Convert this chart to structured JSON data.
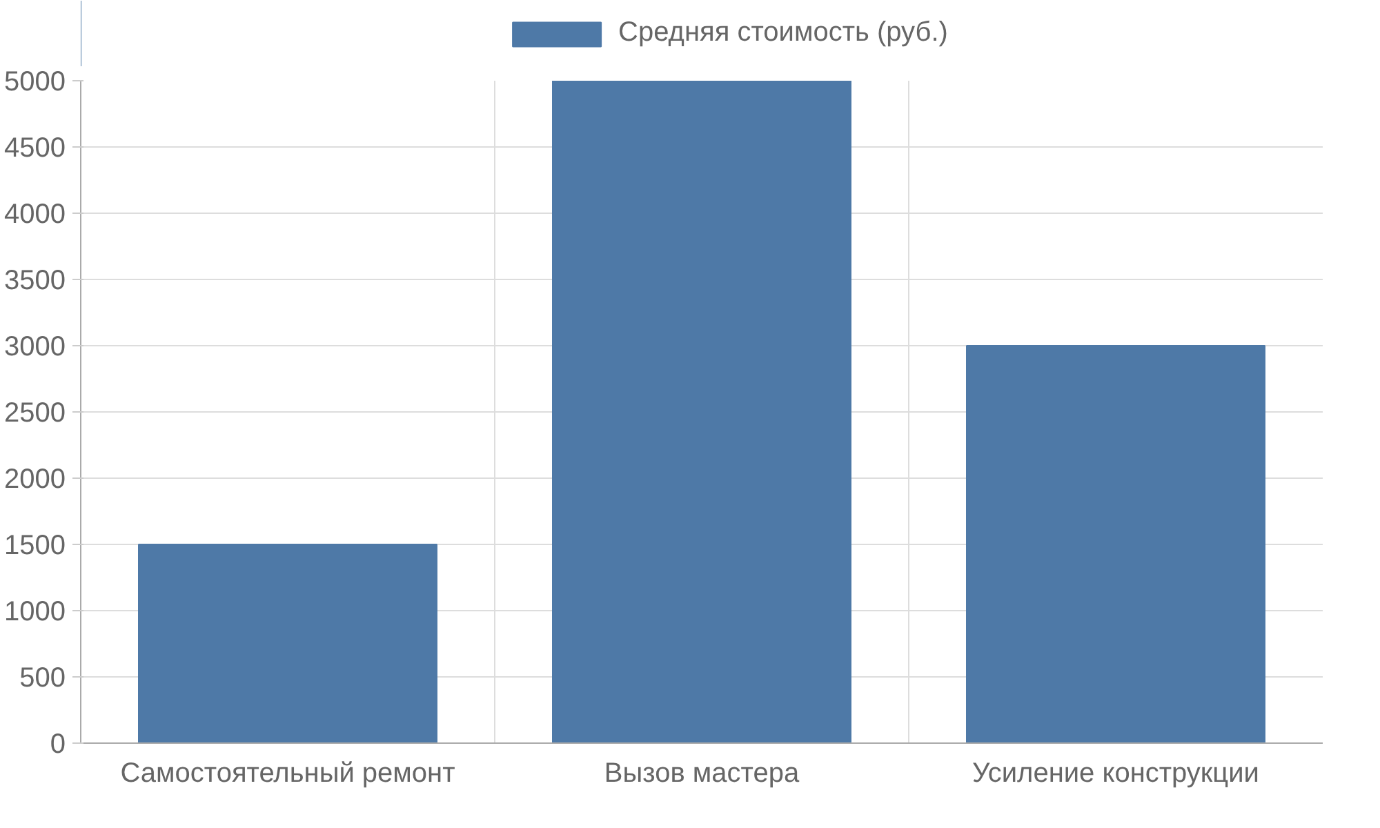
{
  "chart_data": {
    "type": "bar",
    "categories": [
      "Самостоятельный ремонт",
      "Вызов мастера",
      "Усиление конструкции"
    ],
    "series": [
      {
        "name": "Средняя стоимость (руб.)",
        "color": "#4e79a7",
        "values": [
          1500,
          5000,
          3000
        ]
      }
    ],
    "ylim": [
      0,
      5000
    ],
    "yticks": [
      0,
      500,
      1000,
      1500,
      2000,
      2500,
      3000,
      3500,
      4000,
      4500,
      5000
    ],
    "grid": true,
    "legend": "top"
  }
}
